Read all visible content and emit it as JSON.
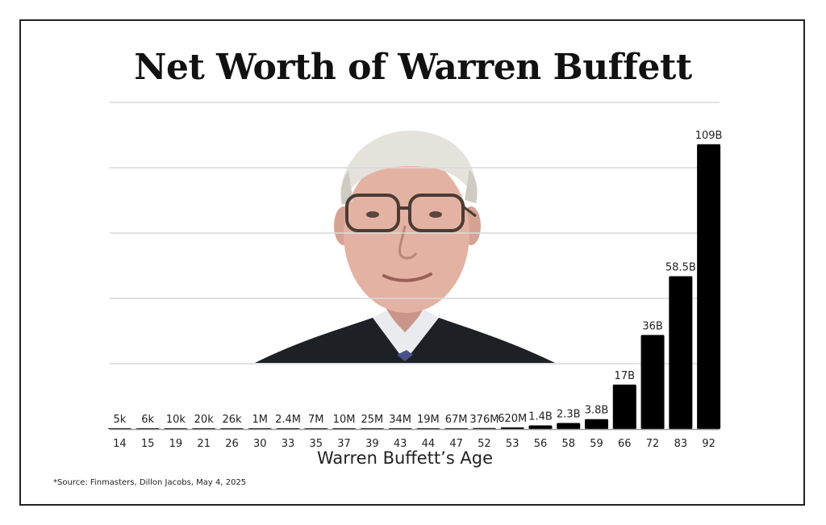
{
  "title": "Net Worth of Warren Buffett",
  "source": "*Source: Finmasters, Dillon Jacobs, May 4, 2025",
  "chart_data": {
    "type": "bar",
    "title": "Net Worth of Warren Buffett",
    "xlabel": "Warren Buffett’s Age",
    "ylabel": "",
    "categories": [
      "14",
      "15",
      "19",
      "21",
      "26",
      "30",
      "33",
      "35",
      "37",
      "39",
      "43",
      "44",
      "47",
      "52",
      "53",
      "56",
      "58",
      "59",
      "66",
      "72",
      "83",
      "92"
    ],
    "values": [
      5e-06,
      6e-06,
      1e-05,
      2e-05,
      2.6e-05,
      0.001,
      0.0024,
      0.007,
      0.01,
      0.025,
      0.034,
      0.019,
      0.067,
      0.376,
      0.62,
      1.4,
      2.3,
      3.8,
      17,
      36,
      58.5,
      109
    ],
    "value_labels": [
      "5k",
      "6k",
      "10k",
      "20k",
      "26k",
      "1M",
      "2.4M",
      "7M",
      "10M",
      "25M",
      "34M",
      "19M",
      "67M",
      "376M",
      "620M",
      "1.4B",
      "2.3B",
      "3.8B",
      "17B",
      "36B",
      "58.5B",
      "109B"
    ],
    "unit": "billion USD",
    "ylim": [
      0,
      125
    ],
    "grid": true,
    "bar_color": "#000000",
    "grid_color": "#d9d9d9"
  }
}
